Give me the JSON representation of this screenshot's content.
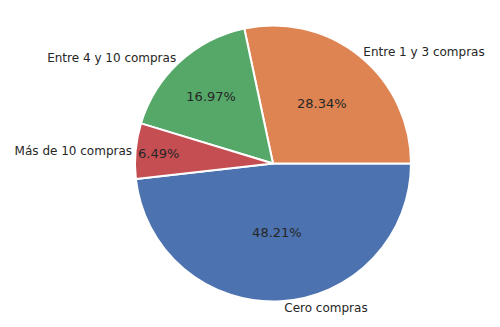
{
  "chart_data": {
    "type": "pie",
    "categories": [
      "Cero compras",
      "Entre 1 y 3 compras",
      "Entre 4 y 10 compras",
      "Más de 10 compras"
    ],
    "values": [
      48.21,
      28.34,
      16.97,
      6.49
    ],
    "value_labels": [
      "48.21%",
      "28.34%",
      "16.97%",
      "6.49%"
    ],
    "colors": [
      "#4c72b0",
      "#dd8452",
      "#55a868",
      "#c44e52"
    ],
    "data_labels": true
  }
}
